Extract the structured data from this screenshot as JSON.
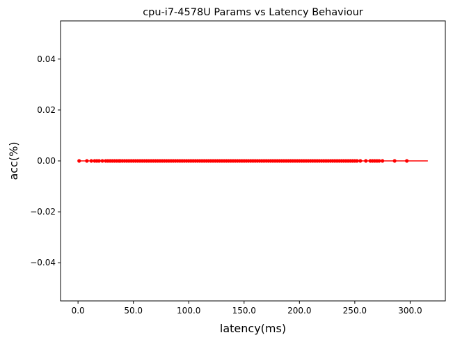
{
  "chart_data": {
    "type": "scatter",
    "title": "cpu-i7-4578U Params vs Latency Behaviour",
    "xlabel": "latency(ms)",
    "ylabel": "acc(%)",
    "xlim": [
      -15.8,
      331.8
    ],
    "ylim": [
      -0.055,
      0.055
    ],
    "xticks": [
      0,
      50,
      100,
      150,
      200,
      250,
      300
    ],
    "xtick_labels": [
      "0.0",
      "50.0",
      "100.0",
      "150.0",
      "200.0",
      "250.0",
      "300.0"
    ],
    "yticks": [
      0.04,
      0.02,
      0.0,
      -0.02,
      -0.04
    ],
    "ytick_labels": [
      "0.04",
      "0.02",
      "0.00",
      "−0.02",
      "−0.04"
    ],
    "grid": false,
    "series": [
      {
        "color": "#ff0000",
        "marker": "circle",
        "x": [
          1,
          8,
          12,
          15,
          17,
          19,
          22,
          25,
          27,
          29,
          31,
          33,
          35,
          37,
          38,
          40,
          42,
          44,
          46,
          48,
          50,
          52,
          54,
          56,
          58,
          60,
          62,
          64,
          66,
          68,
          70,
          72,
          74,
          76,
          78,
          80,
          82,
          84,
          86,
          88,
          90,
          92,
          94,
          96,
          98,
          100,
          102,
          104,
          106,
          108,
          110,
          112,
          114,
          116,
          118,
          120,
          122,
          124,
          126,
          128,
          130,
          132,
          134,
          136,
          138,
          140,
          142,
          144,
          146,
          148,
          150,
          152,
          154,
          156,
          158,
          160,
          162,
          164,
          166,
          168,
          170,
          172,
          174,
          176,
          178,
          180,
          182,
          184,
          186,
          188,
          190,
          192,
          194,
          196,
          198,
          200,
          202,
          204,
          206,
          208,
          210,
          212,
          214,
          216,
          218,
          220,
          222,
          224,
          226,
          228,
          230,
          232,
          234,
          236,
          238,
          240,
          242,
          244,
          246,
          248,
          250,
          252,
          255,
          260,
          264,
          266,
          268,
          270,
          272,
          275,
          286,
          297
        ],
        "y": [
          0,
          0,
          0,
          0,
          0,
          0,
          0,
          0,
          0,
          0,
          0,
          0,
          0,
          0,
          0,
          0,
          0,
          0,
          0,
          0,
          0,
          0,
          0,
          0,
          0,
          0,
          0,
          0,
          0,
          0,
          0,
          0,
          0,
          0,
          0,
          0,
          0,
          0,
          0,
          0,
          0,
          0,
          0,
          0,
          0,
          0,
          0,
          0,
          0,
          0,
          0,
          0,
          0,
          0,
          0,
          0,
          0,
          0,
          0,
          0,
          0,
          0,
          0,
          0,
          0,
          0,
          0,
          0,
          0,
          0,
          0,
          0,
          0,
          0,
          0,
          0,
          0,
          0,
          0,
          0,
          0,
          0,
          0,
          0,
          0,
          0,
          0,
          0,
          0,
          0,
          0,
          0,
          0,
          0,
          0,
          0,
          0,
          0,
          0,
          0,
          0,
          0,
          0,
          0,
          0,
          0,
          0,
          0,
          0,
          0,
          0,
          0,
          0,
          0,
          0,
          0,
          0,
          0,
          0,
          0,
          0,
          0,
          0,
          0,
          0,
          0,
          0,
          0,
          0,
          0,
          0,
          0
        ]
      }
    ],
    "trend_line": {
      "color": "#ff0000",
      "x": [
        0,
        316
      ],
      "y": [
        0,
        0
      ]
    }
  }
}
